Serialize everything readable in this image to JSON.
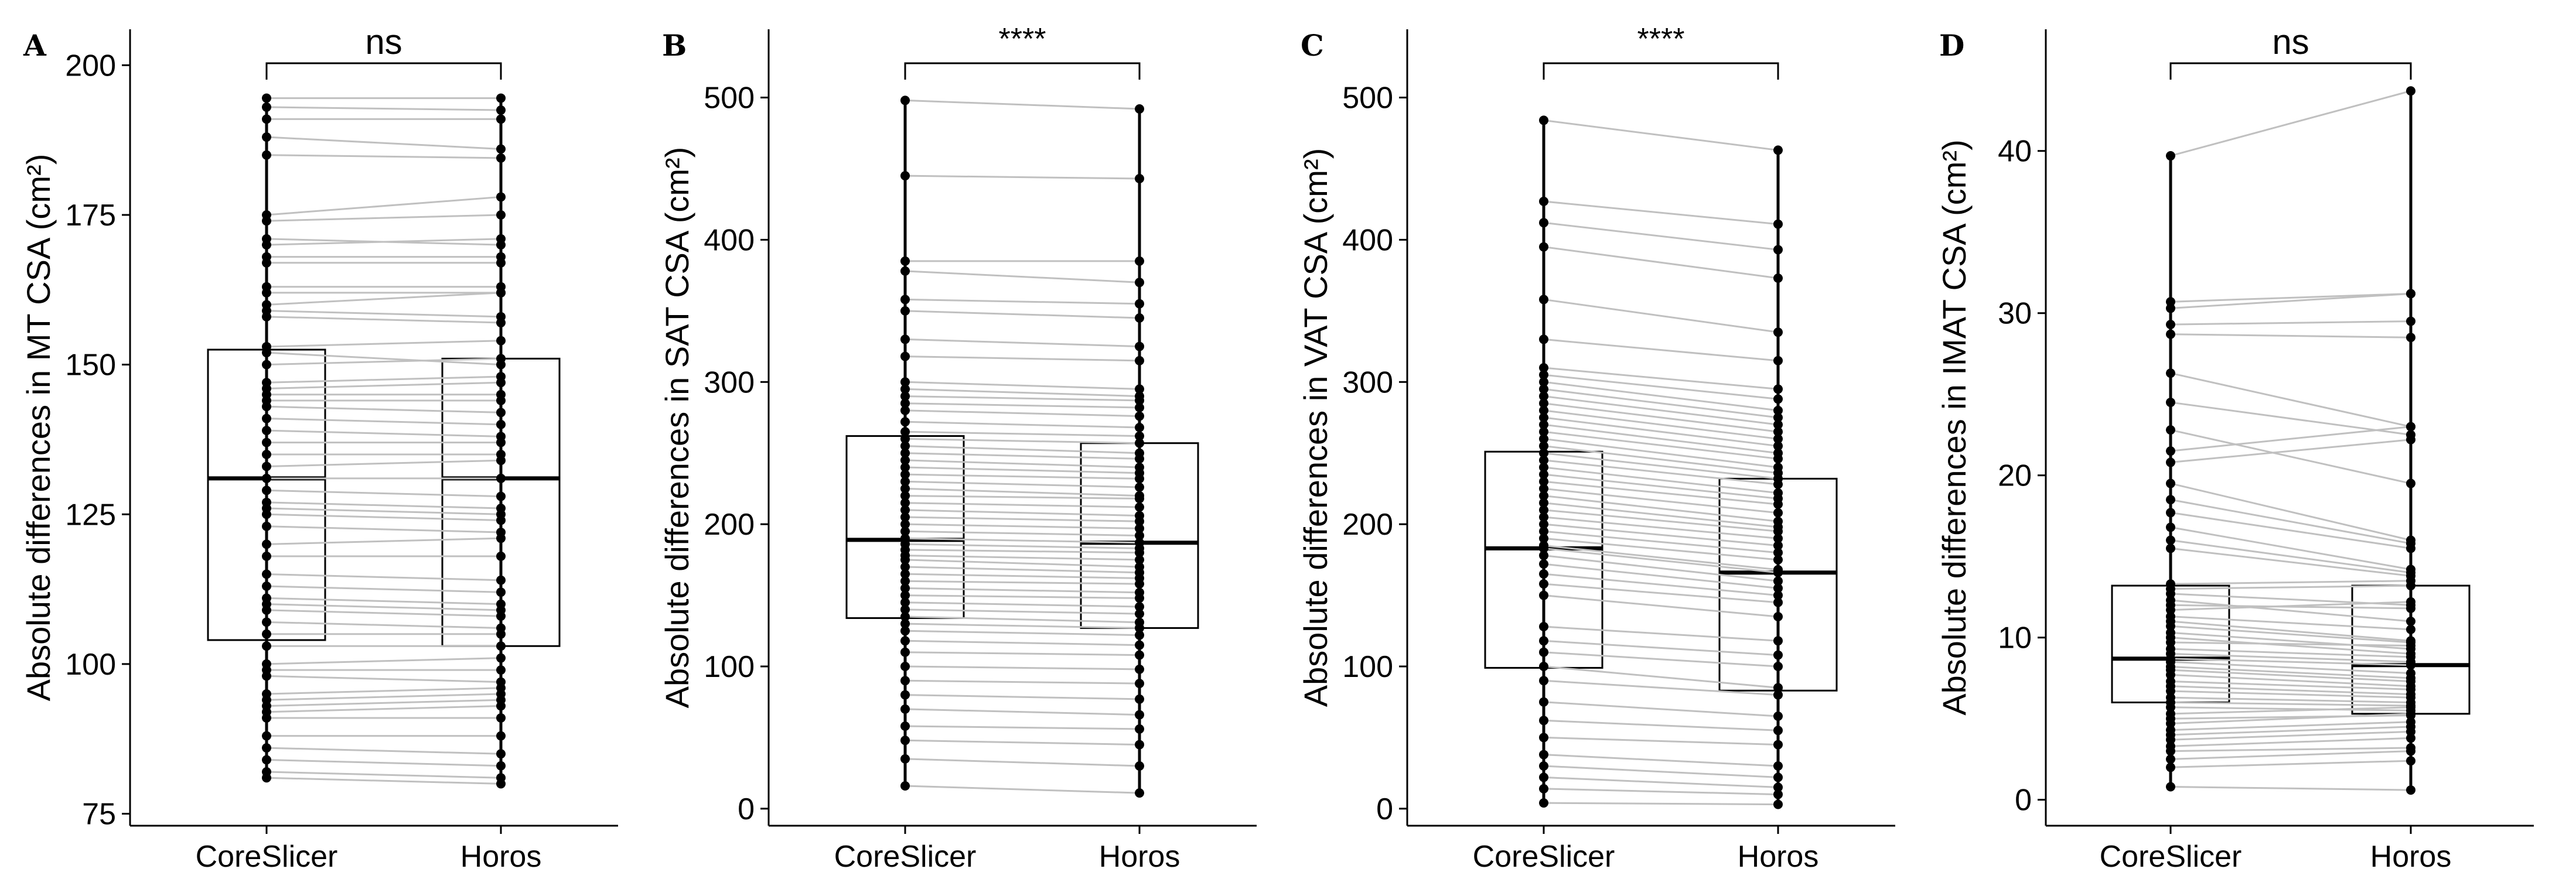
{
  "figure": {
    "panel_letters": [
      "A",
      "B",
      "C",
      "D"
    ]
  },
  "colors": {
    "axis": "#000000",
    "pair_line": "#c0c0c0",
    "point": "#000000",
    "box_stroke": "#000000"
  },
  "chart_data": [
    {
      "type": "paired-boxplot",
      "panel": "A",
      "ylabel": "Absolute differences in MT CSA (cm²)",
      "categories": [
        "CoreSlicer",
        "Horos"
      ],
      "yticks": [
        75,
        100,
        125,
        150,
        175,
        200
      ],
      "ylim": [
        73,
        206
      ],
      "significance": "ns",
      "boxes": [
        {
          "name": "CoreSlicer",
          "q1": 104,
          "median": 131,
          "q3": 152.5
        },
        {
          "name": "Horos",
          "q1": 103,
          "median": 131,
          "q3": 151
        }
      ],
      "pairs": [
        [
          194.5,
          194.5
        ],
        [
          193,
          192.5
        ],
        [
          191,
          191
        ],
        [
          188,
          186
        ],
        [
          185,
          184.5
        ],
        [
          175,
          178
        ],
        [
          174,
          175
        ],
        [
          171,
          170
        ],
        [
          170,
          171
        ],
        [
          168,
          168
        ],
        [
          167,
          167
        ],
        [
          163,
          163
        ],
        [
          162,
          162
        ],
        [
          160,
          162
        ],
        [
          159,
          158
        ],
        [
          158,
          157
        ],
        [
          153,
          154
        ],
        [
          152,
          150
        ],
        [
          150,
          151
        ],
        [
          147,
          148
        ],
        [
          146,
          147
        ],
        [
          145,
          145
        ],
        [
          144,
          144
        ],
        [
          143,
          142
        ],
        [
          141,
          140
        ],
        [
          139,
          138
        ],
        [
          137,
          137
        ],
        [
          135,
          135
        ],
        [
          133,
          134
        ],
        [
          131,
          131
        ],
        [
          129,
          128
        ],
        [
          127,
          126
        ],
        [
          126,
          125
        ],
        [
          125,
          124
        ],
        [
          123,
          122
        ],
        [
          120,
          121
        ],
        [
          118,
          118
        ],
        [
          115,
          114
        ],
        [
          113,
          112
        ],
        [
          111,
          110
        ],
        [
          110,
          109
        ],
        [
          109,
          108
        ],
        [
          107,
          106
        ],
        [
          105,
          105
        ],
        [
          103,
          103
        ],
        [
          100,
          101
        ],
        [
          99,
          99
        ],
        [
          98,
          97
        ],
        [
          95,
          96
        ],
        [
          94,
          95
        ],
        [
          93,
          94
        ],
        [
          92,
          93
        ],
        [
          91,
          91
        ],
        [
          88,
          88
        ],
        [
          86,
          85
        ],
        [
          84,
          83
        ],
        [
          82,
          81
        ],
        [
          81,
          80
        ]
      ]
    },
    {
      "type": "paired-boxplot",
      "panel": "B",
      "ylabel": "Absolute differences in SAT CSA (cm²)",
      "categories": [
        "CoreSlicer",
        "Horos"
      ],
      "yticks": [
        0,
        100,
        200,
        300,
        400,
        500
      ],
      "ylim": [
        -12,
        548
      ],
      "significance": "****",
      "boxes": [
        {
          "name": "CoreSlicer",
          "q1": 134,
          "median": 189,
          "q3": 262
        },
        {
          "name": "Horos",
          "q1": 127,
          "median": 187,
          "q3": 257
        }
      ],
      "pairs": [
        [
          498,
          492
        ],
        [
          445,
          443
        ],
        [
          385,
          385
        ],
        [
          378,
          370
        ],
        [
          358,
          355
        ],
        [
          350,
          345
        ],
        [
          330,
          325
        ],
        [
          318,
          315
        ],
        [
          300,
          295
        ],
        [
          295,
          290
        ],
        [
          290,
          287
        ],
        [
          285,
          282
        ],
        [
          280,
          276
        ],
        [
          272,
          268
        ],
        [
          265,
          262
        ],
        [
          260,
          257
        ],
        [
          255,
          250
        ],
        [
          250,
          246
        ],
        [
          245,
          240
        ],
        [
          240,
          236
        ],
        [
          235,
          232
        ],
        [
          230,
          226
        ],
        [
          225,
          220
        ],
        [
          220,
          218
        ],
        [
          215,
          212
        ],
        [
          210,
          206
        ],
        [
          205,
          202
        ],
        [
          200,
          197
        ],
        [
          195,
          192
        ],
        [
          190,
          187
        ],
        [
          186,
          183
        ],
        [
          182,
          180
        ],
        [
          178,
          175
        ],
        [
          175,
          170
        ],
        [
          170,
          166
        ],
        [
          165,
          162
        ],
        [
          160,
          158
        ],
        [
          155,
          152
        ],
        [
          150,
          148
        ],
        [
          145,
          142
        ],
        [
          140,
          137
        ],
        [
          135,
          131
        ],
        [
          130,
          127
        ],
        [
          125,
          122
        ],
        [
          118,
          115
        ],
        [
          110,
          108
        ],
        [
          100,
          98
        ],
        [
          90,
          88
        ],
        [
          80,
          77
        ],
        [
          70,
          66
        ],
        [
          58,
          56
        ],
        [
          48,
          45
        ],
        [
          35,
          30
        ],
        [
          16,
          11
        ]
      ]
    },
    {
      "type": "paired-boxplot",
      "panel": "C",
      "ylabel": "Absolute differences in VAT CSA (cm²)",
      "categories": [
        "CoreSlicer",
        "Horos"
      ],
      "yticks": [
        0,
        100,
        200,
        300,
        400,
        500
      ],
      "ylim": [
        -12,
        548
      ],
      "significance": "****",
      "boxes": [
        {
          "name": "CoreSlicer",
          "q1": 99,
          "median": 183,
          "q3": 251
        },
        {
          "name": "Horos",
          "q1": 83,
          "median": 166,
          "q3": 232
        }
      ],
      "pairs": [
        [
          484,
          463
        ],
        [
          427,
          411
        ],
        [
          412,
          393
        ],
        [
          395,
          373
        ],
        [
          358,
          335
        ],
        [
          330,
          315
        ],
        [
          310,
          295
        ],
        [
          305,
          288
        ],
        [
          300,
          280
        ],
        [
          295,
          275
        ],
        [
          290,
          270
        ],
        [
          285,
          265
        ],
        [
          280,
          260
        ],
        [
          275,
          255
        ],
        [
          270,
          250
        ],
        [
          265,
          246
        ],
        [
          260,
          240
        ],
        [
          255,
          236
        ],
        [
          250,
          232
        ],
        [
          245,
          228
        ],
        [
          240,
          222
        ],
        [
          235,
          218
        ],
        [
          230,
          214
        ],
        [
          225,
          208
        ],
        [
          220,
          202
        ],
        [
          215,
          198
        ],
        [
          210,
          195
        ],
        [
          205,
          190
        ],
        [
          200,
          185
        ],
        [
          195,
          180
        ],
        [
          190,
          175
        ],
        [
          185,
          168
        ],
        [
          183,
          166
        ],
        [
          178,
          160
        ],
        [
          172,
          155
        ],
        [
          165,
          150
        ],
        [
          158,
          145
        ],
        [
          150,
          135
        ],
        [
          128,
          118
        ],
        [
          118,
          108
        ],
        [
          110,
          100
        ],
        [
          100,
          85
        ],
        [
          90,
          80
        ],
        [
          75,
          65
        ],
        [
          62,
          55
        ],
        [
          50,
          45
        ],
        [
          38,
          30
        ],
        [
          30,
          22
        ],
        [
          22,
          15
        ],
        [
          14,
          10
        ],
        [
          4,
          3
        ]
      ]
    },
    {
      "type": "paired-boxplot",
      "panel": "D",
      "ylabel": "Absolute differences in IMAT CSA (cm²)",
      "categories": [
        "CoreSlicer",
        "Horos"
      ],
      "yticks": [
        0,
        10,
        20,
        30,
        40
      ],
      "ylim": [
        -1.6,
        47.5
      ],
      "significance": "ns",
      "boxes": [
        {
          "name": "CoreSlicer",
          "q1": 6,
          "median": 8.7,
          "q3": 13.2
        },
        {
          "name": "Horos",
          "q1": 5.3,
          "median": 8.3,
          "q3": 13.2
        }
      ],
      "pairs": [
        [
          39.7,
          43.7
        ],
        [
          30.7,
          31.2
        ],
        [
          30.3,
          31.2
        ],
        [
          29.3,
          29.5
        ],
        [
          28.7,
          28.5
        ],
        [
          26.3,
          23
        ],
        [
          24.5,
          22.5
        ],
        [
          22.8,
          19.5
        ],
        [
          21.5,
          23
        ],
        [
          20.8,
          22.2
        ],
        [
          19.5,
          16
        ],
        [
          18.5,
          15.8
        ],
        [
          17.7,
          15.5
        ],
        [
          16.8,
          14.2
        ],
        [
          16,
          14
        ],
        [
          15.5,
          13.8
        ],
        [
          13.3,
          13.5
        ],
        [
          13,
          13.2
        ],
        [
          12.7,
          12
        ],
        [
          12.3,
          11
        ],
        [
          12,
          11.8
        ],
        [
          11.7,
          12.2
        ],
        [
          11.3,
          10.5
        ],
        [
          11,
          9.8
        ],
        [
          10.7,
          9.7
        ],
        [
          10.3,
          9.3
        ],
        [
          10,
          9
        ],
        [
          9.7,
          9.5
        ],
        [
          9.3,
          8.8
        ],
        [
          9,
          8.5
        ],
        [
          8.7,
          8.3
        ],
        [
          8.5,
          7.8
        ],
        [
          8.2,
          7.5
        ],
        [
          8,
          7.3
        ],
        [
          7.7,
          7
        ],
        [
          7.3,
          6.8
        ],
        [
          7,
          6.5
        ],
        [
          6.7,
          6.3
        ],
        [
          6.3,
          6
        ],
        [
          6,
          5.8
        ],
        [
          5.7,
          5.5
        ],
        [
          5.3,
          5.7
        ],
        [
          5,
          5.2
        ],
        [
          4.7,
          5.3
        ],
        [
          4.3,
          4.8
        ],
        [
          4,
          4.5
        ],
        [
          3.7,
          4.2
        ],
        [
          3.3,
          3.8
        ],
        [
          3,
          3.2
        ],
        [
          2.5,
          3
        ],
        [
          2,
          2.4
        ],
        [
          0.8,
          0.6
        ]
      ]
    }
  ]
}
